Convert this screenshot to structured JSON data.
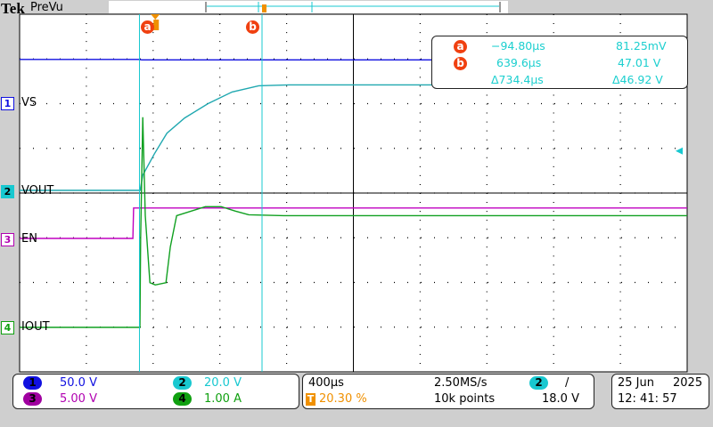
{
  "header": {
    "brand": "Tek",
    "mode": "PreVu"
  },
  "cursors": {
    "a_label": "a",
    "b_label": "b",
    "a_time": "−94.80µs",
    "a_value": "81.25mV",
    "b_time": "639.6µs",
    "b_value": "47.01 V",
    "delta_time": "Δ734.4µs",
    "delta_value": "Δ46.92 V"
  },
  "channels": [
    {
      "num": "1",
      "label": "VS",
      "scale": "50.0 V",
      "color": "#1010e0"
    },
    {
      "num": "2",
      "label": "VOUT",
      "scale": "20.0 V",
      "color": "#18c8d0"
    },
    {
      "num": "3",
      "label": "EN",
      "scale": "5.00 V",
      "color": "#b000b0"
    },
    {
      "num": "4",
      "label": "IOUT",
      "scale": "1.00 A",
      "color": "#10a010"
    }
  ],
  "timebase": {
    "scale": "400µs",
    "sample_rate": "2.50MS/s",
    "trigger_position": "20.30 %",
    "record_length": "10k points",
    "trigger_icon": "T"
  },
  "trigger": {
    "source": "2",
    "slope": "/",
    "level": "18.0 V"
  },
  "datetime": {
    "date_day": "25 Jun",
    "date_year": "2025",
    "time": "12: 41: 57"
  },
  "chart_data": {
    "type": "line",
    "x_units": "µs",
    "xlim": [
      -813,
      3187
    ],
    "x_divisions": 10,
    "y_divisions": 8,
    "grid": true,
    "cursor_a_time": -94.8,
    "cursor_b_time": 639.6,
    "trigger_time": 0,
    "trigger_level": 18.0,
    "series": [
      {
        "name": "VS",
        "channel": 1,
        "volts_per_div": 50,
        "color": "#1010e0",
        "points": [
          [
            -813,
            49
          ],
          [
            -100,
            49
          ],
          [
            -80,
            48.5
          ],
          [
            3187,
            48.5
          ]
        ]
      },
      {
        "name": "VOUT",
        "channel": 2,
        "volts_per_div": 20,
        "color": "#20a8b0",
        "points": [
          [
            -813,
            0.4
          ],
          [
            -91,
            0.4
          ],
          [
            -75,
            7.2
          ],
          [
            -5,
            16.8
          ],
          [
            70,
            26
          ],
          [
            176,
            32.8
          ],
          [
            316,
            39.2
          ],
          [
            460,
            44.4
          ],
          [
            620,
            47.2
          ],
          [
            800,
            47.6
          ],
          [
            3187,
            47.6
          ]
        ]
      },
      {
        "name": "EN",
        "channel": 3,
        "volts_per_div": 5,
        "color": "#c000c0",
        "points": [
          [
            -813,
            0
          ],
          [
            -134,
            0
          ],
          [
            -130,
            3.4
          ],
          [
            3187,
            3.4
          ]
        ]
      },
      {
        "name": "IOUT",
        "channel": 4,
        "amps_per_div": 1,
        "color": "#10a020",
        "points": [
          [
            -813,
            0
          ],
          [
            -92,
            0
          ],
          [
            -88,
            2.0
          ],
          [
            -75,
            4.7
          ],
          [
            -60,
            2.5
          ],
          [
            -32,
            1.0
          ],
          [
            0,
            0.95
          ],
          [
            64,
            1.0
          ],
          [
            90,
            1.8
          ],
          [
            128,
            2.5
          ],
          [
            300,
            2.7
          ],
          [
            395,
            2.7
          ],
          [
            480,
            2.6
          ],
          [
            560,
            2.52
          ],
          [
            770,
            2.5
          ],
          [
            3187,
            2.5
          ]
        ]
      }
    ]
  }
}
